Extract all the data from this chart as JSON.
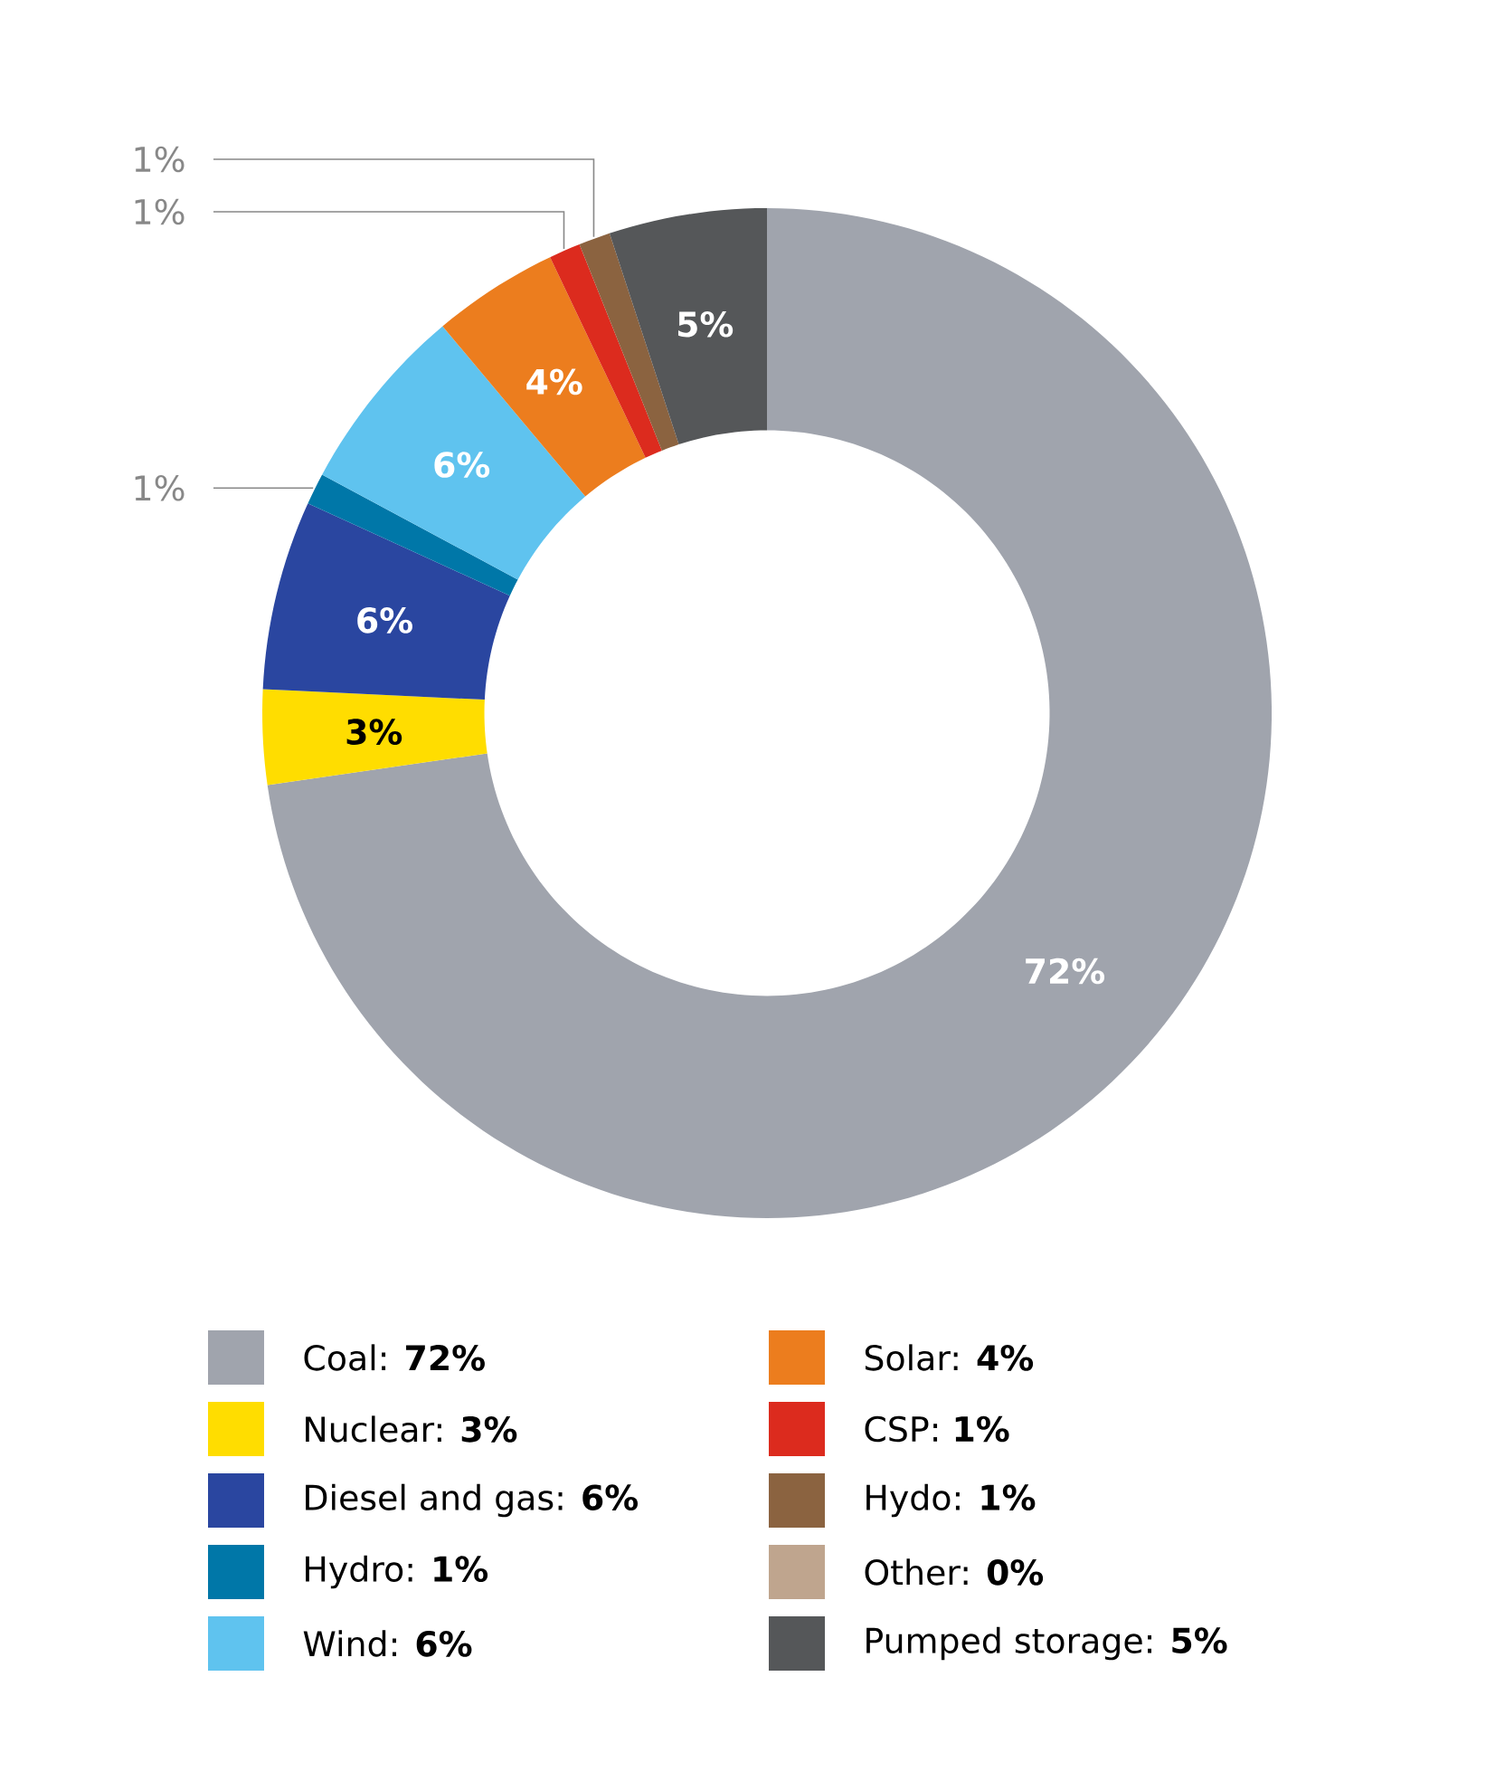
{
  "chart_data": {
    "type": "donut",
    "categories": [
      "Coal: **72%**",
      "Nuclear: **3%**",
      "Diesel and gas: **6%**",
      "Hydro: **1%**",
      "Wind: **6%**",
      "Solar: **4%**",
      "CSP: **1%**",
      "Hydo: **1%**",
      "Other: **0%**",
      "Pumped storage: **5%**"
    ],
    "values": [
      72,
      3,
      6,
      1,
      6,
      4,
      1,
      1,
      0,
      5
    ],
    "value_labels": [
      "72%",
      "3%",
      "6%",
      "1%",
      "6%",
      "4%",
      "1%",
      "1%",
      null,
      "5%"
    ],
    "colors": [
      "#a0a4ad",
      "#ffdd00",
      "#2a46a0",
      "#0077a8",
      "#5fc3ef",
      "#ec7d1e",
      "#dc2b1e",
      "#8b6340",
      "#bfa58e",
      "#555759"
    ],
    "legend": "bottom"
  }
}
